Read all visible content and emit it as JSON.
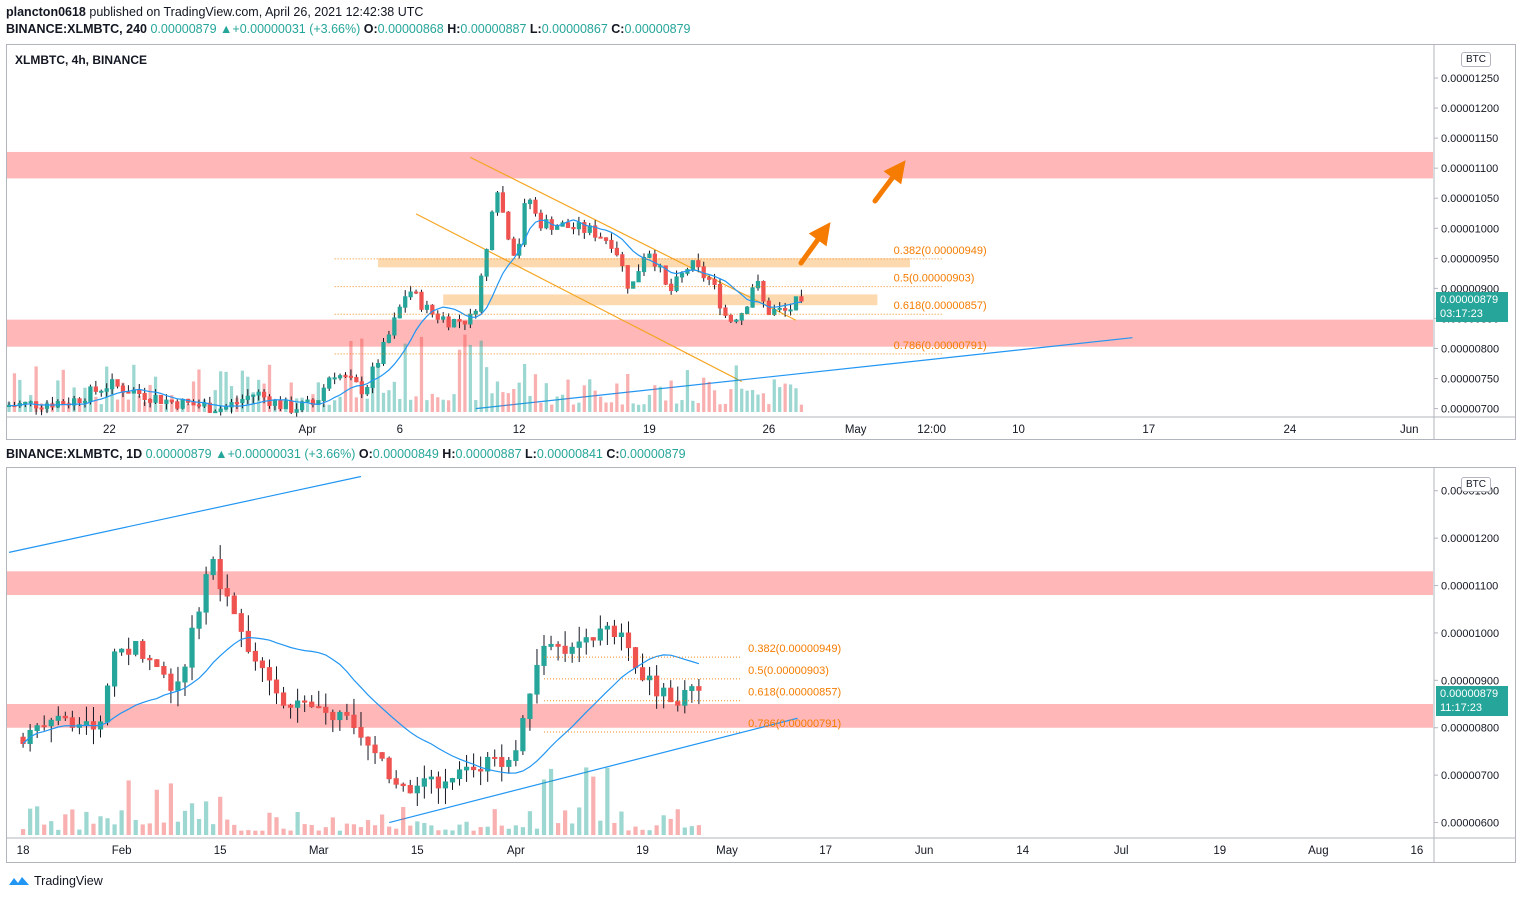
{
  "publish_line": {
    "user": "plancton0618",
    "text": "published on TradingView.com, April 26, 2021 12:42:38 UTC"
  },
  "top_header": {
    "symbol": "BINANCE:XLMBTC, 240",
    "last": "0.00000879",
    "arrow": "▲",
    "change": "+0.00000031 (+3.66%)",
    "o_label": "O:",
    "o": "0.00000868",
    "h_label": "H:",
    "h": "0.00000887",
    "l_label": "L:",
    "l": "0.00000867",
    "c_label": "C:",
    "c": "0.00000879"
  },
  "bottom_header": {
    "symbol": "BINANCE:XLMBTC, 1D",
    "last": "0.00000879",
    "arrow": "▲",
    "change": "+0.00000031 (+3.66%)",
    "o_label": "O:",
    "o": "0.00000849",
    "h_label": "H:",
    "h": "0.00000887",
    "l_label": "L:",
    "l": "0.00000841",
    "c_label": "C:",
    "c": "0.00000879"
  },
  "footer": {
    "brand": "TradingView"
  },
  "colors": {
    "up": "#26a69a",
    "down": "#ef5350",
    "zone": "#ffb3b3",
    "fib_zone": "#fdd9b0",
    "fib_text": "#f57c00",
    "ma": "#2196f3",
    "trend": "#2196f3",
    "channel": "#f5a623",
    "arrow": "#f57c00",
    "axis_text": "#131722"
  },
  "chart_data": [
    {
      "type": "candlestick",
      "title": "XLMBTC, 4h, BINANCE",
      "currency": "BTC",
      "current_price": "0.00000879",
      "countdown": "03:17:23",
      "y_ticks": [
        "0.00001250",
        "0.00001200",
        "0.00001150",
        "0.00001100",
        "0.00001050",
        "0.00001000",
        "0.00000950",
        "0.00000900",
        "0.00000850",
        "0.00000800",
        "0.00000750",
        "0.00000700"
      ],
      "ylim": [
        6.96e-06,
        1.265e-05
      ],
      "x_ticks": [
        "22",
        "27",
        "Apr",
        "6",
        "12",
        "19",
        "26",
        "May",
        "12:00",
        "10",
        "17",
        "24",
        "Jun"
      ],
      "x_tick_index": [
        18.5,
        32,
        55,
        72,
        94,
        118,
        140,
        156,
        170,
        186,
        210,
        236,
        258
      ],
      "x_range": [
        0,
        262
      ],
      "anchors": [
        [
          0,
          7.05e-06
        ],
        [
          12,
          7.12e-06
        ],
        [
          19,
          7.4e-06
        ],
        [
          30,
          7.12e-06
        ],
        [
          40,
          7e-06
        ],
        [
          46,
          7.26e-06
        ],
        [
          52,
          7e-06
        ],
        [
          57,
          7.08e-06
        ],
        [
          60,
          7.62e-06
        ],
        [
          66,
          7.3e-06
        ],
        [
          70,
          8.1e-06
        ],
        [
          74,
          9e-06
        ],
        [
          78,
          8.6e-06
        ],
        [
          82,
          8.45e-06
        ],
        [
          86,
          8.5e-06
        ],
        [
          89,
          9.85e-06
        ],
        [
          90,
          1.09e-05
        ],
        [
          92,
          1.005e-05
        ],
        [
          94,
          9.5e-06
        ],
        [
          96,
          1.06e-05
        ],
        [
          98,
          1.01e-05
        ],
        [
          102,
          1.005e-05
        ],
        [
          108,
          9.95e-06
        ],
        [
          112,
          9.75e-06
        ],
        [
          115,
          8.95e-06
        ],
        [
          118,
          9.7e-06
        ],
        [
          120,
          9.4e-06
        ],
        [
          122,
          8.9e-06
        ],
        [
          126,
          9.4e-06
        ],
        [
          130,
          9.1e-06
        ],
        [
          133,
          8.45e-06
        ],
        [
          136,
          8.65e-06
        ],
        [
          138,
          9.18e-06
        ],
        [
          140,
          8.62e-06
        ],
        [
          144,
          8.62e-06
        ],
        [
          146,
          8.8e-06
        ]
      ],
      "series": [
        {
          "name": "XLMBTC"
        }
      ],
      "ma_name": "MA",
      "zones": [
        [
          1.083e-05,
          1.127e-05
        ],
        [
          8.03e-06,
          8.48e-06
        ]
      ],
      "fib_levels": [
        {
          "label": "0.382(0.00000949)",
          "value": 9.49e-06
        },
        {
          "label": "0.5(0.00000903)",
          "value": 9.03e-06
        },
        {
          "label": "0.618(0.00000857)",
          "value": 8.57e-06
        },
        {
          "label": "0.786(0.00000791)",
          "value": 7.91e-06
        }
      ]
    },
    {
      "type": "candlestick",
      "currency": "BTC",
      "current_price": "0.00000879",
      "countdown": "11:17:23",
      "y_ticks": [
        "0.00001300",
        "0.00001200",
        "0.00001100",
        "0.00001000",
        "0.00000900",
        "0.00000800",
        "0.00000700",
        "0.00000600"
      ],
      "ylim": [
        5.8e-06,
        1.31e-05
      ],
      "x_ticks": [
        "18",
        "Feb",
        "15",
        "Mar",
        "15",
        "Apr",
        "19",
        "May",
        "17",
        "Jun",
        "14",
        "Jul",
        "19",
        "Aug",
        "16"
      ],
      "x_tick_index": [
        0,
        14,
        28,
        42,
        56,
        70,
        88,
        100,
        114,
        128,
        142,
        156,
        170,
        184,
        198
      ],
      "x_range": [
        -2,
        200
      ],
      "anchors": [
        [
          0,
          7.8e-06
        ],
        [
          8,
          8.2e-06
        ],
        [
          11,
          7.8e-06
        ],
        [
          14,
          9.8e-06
        ],
        [
          18,
          9.6e-06
        ],
        [
          22,
          8.7e-06
        ],
        [
          26,
          1.07e-05
        ],
        [
          27,
          1.18e-05
        ],
        [
          28,
          1.13e-05
        ],
        [
          32,
          9.7e-06
        ],
        [
          38,
          8.5e-06
        ],
        [
          46,
          8.2e-06
        ],
        [
          52,
          7.2e-06
        ],
        [
          54,
          6.6e-06
        ],
        [
          60,
          6.9e-06
        ],
        [
          66,
          7.2e-06
        ],
        [
          70,
          7.3e-06
        ],
        [
          74,
          9.7e-06
        ],
        [
          80,
          9.7e-06
        ],
        [
          84,
          1.02e-05
        ],
        [
          88,
          9.3e-06
        ],
        [
          90,
          8.8e-06
        ],
        [
          94,
          8.6e-06
        ],
        [
          96,
          8.8e-06
        ]
      ],
      "series": [
        {
          "name": "XLMBTC"
        }
      ],
      "ma_name": "MA",
      "zones": [
        [
          8e-06,
          8.5e-06
        ],
        [
          1.08e-05,
          1.13e-05
        ]
      ],
      "fib_levels": [
        {
          "label": "0.382(0.00000949)",
          "value": 9.49e-06
        },
        {
          "label": "0.5(0.00000903)",
          "value": 9.03e-06
        },
        {
          "label": "0.618(0.00000857)",
          "value": 8.57e-06
        },
        {
          "label": "0.786(0.00000791)",
          "value": 7.91e-06
        }
      ]
    }
  ]
}
